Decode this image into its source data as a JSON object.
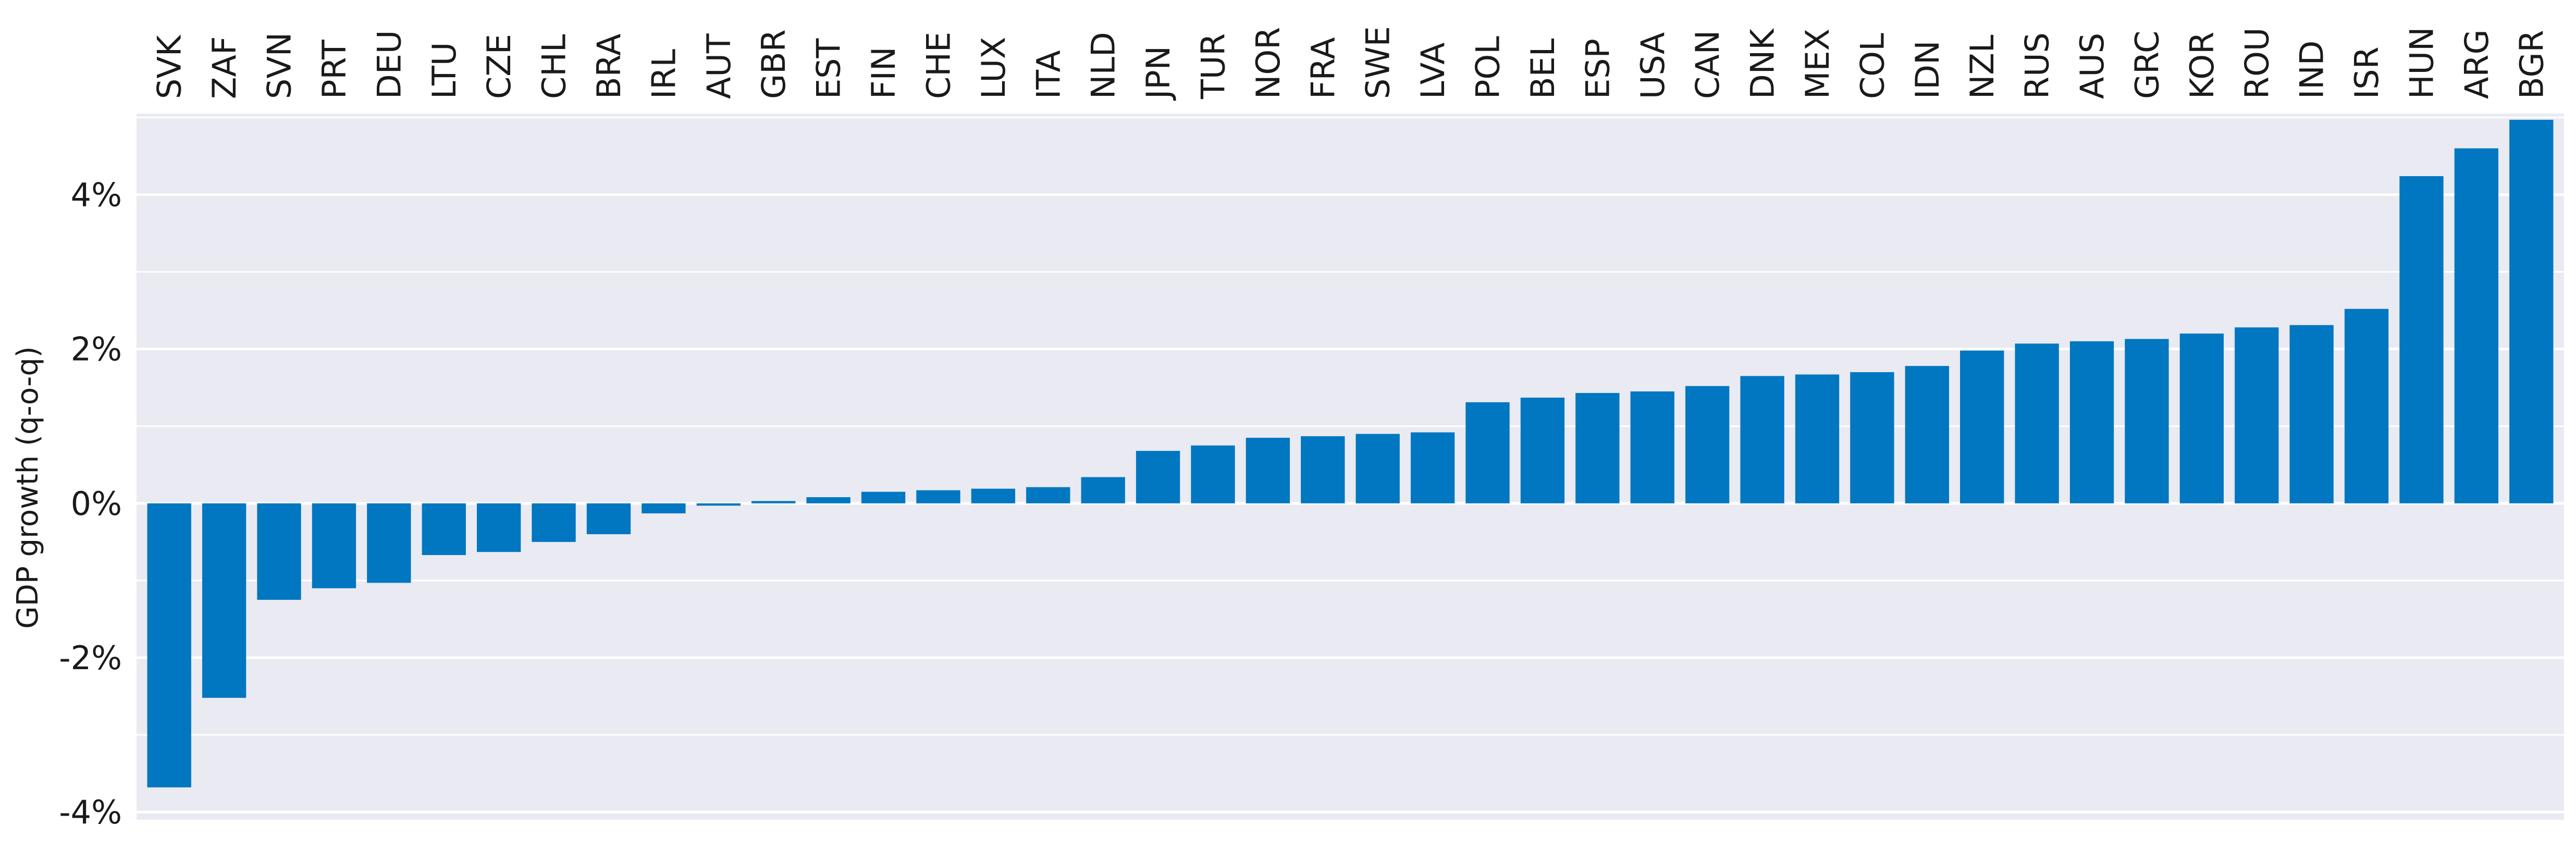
{
  "chart_data": {
    "type": "bar",
    "title": "",
    "xlabel": "",
    "ylabel": "GDP growth (q-o-q)",
    "ylim": [
      -4.1,
      5.05
    ],
    "yticks": [
      -4,
      -2,
      0,
      2,
      4
    ],
    "ytick_labels": [
      "-4%",
      "-2%",
      "0%",
      "2%",
      "4%"
    ],
    "grid": true,
    "legend": "none",
    "colors": {
      "bar": "#0077c0",
      "background": "#eaeaf2",
      "grid": "#ffffff"
    },
    "categories": [
      "SVK",
      "ZAF",
      "SVN",
      "PRT",
      "DEU",
      "LTU",
      "CZE",
      "CHL",
      "BRA",
      "IRL",
      "AUT",
      "GBR",
      "EST",
      "FIN",
      "CHE",
      "LUX",
      "ITA",
      "NLD",
      "JPN",
      "TUR",
      "NOR",
      "FRA",
      "SWE",
      "LVA",
      "POL",
      "BEL",
      "ESP",
      "USA",
      "CAN",
      "DNK",
      "MEX",
      "COL",
      "IDN",
      "NZL",
      "RUS",
      "AUS",
      "GRC",
      "KOR",
      "ROU",
      "IND",
      "ISR",
      "HUN",
      "ARG",
      "BGR"
    ],
    "values": [
      -3.68,
      -2.52,
      -1.25,
      -1.1,
      -1.03,
      -0.67,
      -0.63,
      -0.5,
      -0.4,
      -0.13,
      -0.03,
      0.03,
      0.08,
      0.15,
      0.17,
      0.19,
      0.21,
      0.34,
      0.68,
      0.75,
      0.85,
      0.87,
      0.9,
      0.92,
      1.31,
      1.37,
      1.43,
      1.45,
      1.52,
      1.65,
      1.67,
      1.7,
      1.78,
      1.98,
      2.07,
      2.1,
      2.13,
      2.2,
      2.28,
      2.31,
      2.52,
      4.24,
      4.6,
      4.97
    ]
  }
}
